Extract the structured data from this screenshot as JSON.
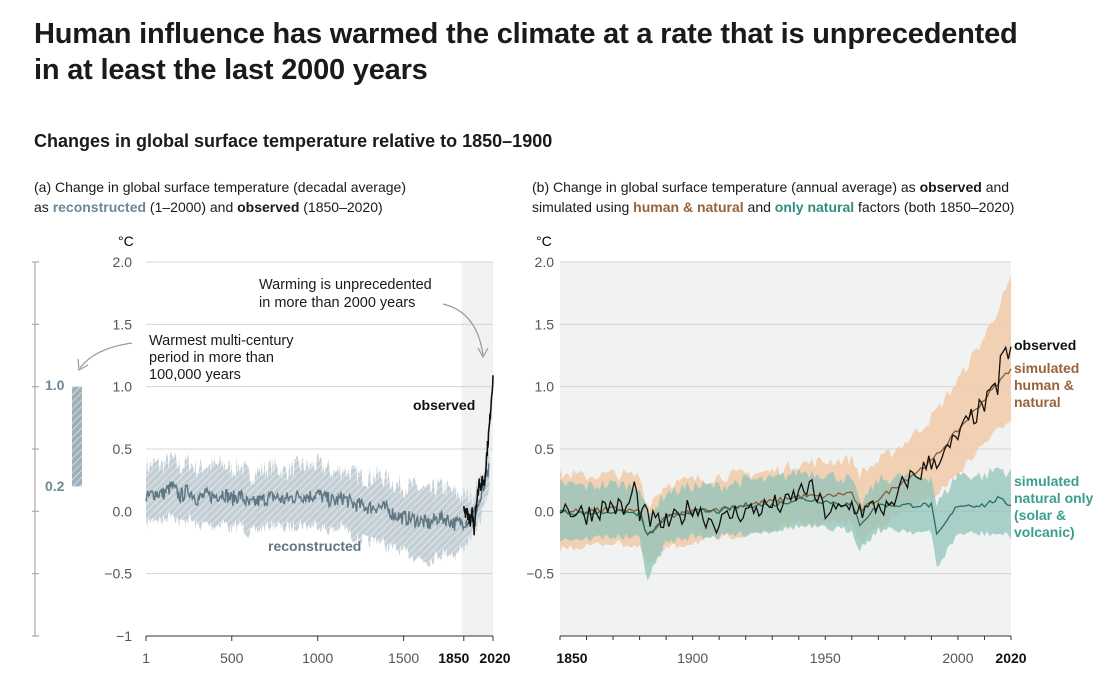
{
  "headline": {
    "line1": "Human influence has warmed the climate at a rate that is unprecedented",
    "line2": "in at least the last 2000 years"
  },
  "subtitle": "Changes in global surface temperature relative to 1850–1900",
  "panel_a": {
    "title_line1": "(a) Change in global surface temperature (decadal average)",
    "title_line2_prefix": "as ",
    "title_reconstructed": "reconstructed",
    "title_mid": " (1–2000) and ",
    "title_observed": "observed",
    "title_end": " (1850–2020)",
    "unit": "°C",
    "annotation_warming": [
      "Warming is unprecedented",
      "in more than 2000 years"
    ],
    "annotation_warmest": [
      "Warmest multi-century",
      "period in more than",
      "100,000 years"
    ],
    "label_observed": "observed",
    "label_reconstructed": "reconstructed",
    "bar_top": "1.0",
    "bar_bottom": "0.2",
    "colors": {
      "reconstructed": "#5f7683",
      "band": "#c3ced5",
      "observed": "#111111",
      "shade": "#f1f3f2",
      "bar": "#9fb0ba"
    }
  },
  "panel_b": {
    "title_line1_prefix": "(b) Change in global surface temperature (annual average) as ",
    "title_observed": "observed",
    "title_line1_end": " and",
    "title_line2_prefix": "simulated using ",
    "title_human": "human & natural",
    "title_mid": " and ",
    "title_natural": "only natural",
    "title_end": " factors (both 1850–2020)",
    "unit": "°C",
    "label_observed": "observed",
    "label_human": [
      "simulated",
      "human &",
      "natural"
    ],
    "label_natural": [
      "simulated",
      "natural only",
      "(solar &",
      "volcanic)"
    ],
    "colors": {
      "observed": "#111111",
      "human": "#8c5a35",
      "human_band": "#f2c9a8",
      "natural": "#2c6e63",
      "natural_band": "#8fc4b9",
      "shade": "#f1f3f2"
    }
  },
  "chart_data": [
    {
      "type": "line",
      "panel": "a",
      "x_ticks": [
        1,
        500,
        1000,
        1500,
        1850,
        2020
      ],
      "y_ticks": [
        -1,
        -0.5,
        0.0,
        0.5,
        1.0,
        1.5,
        2.0
      ],
      "xlim": [
        1,
        2020
      ],
      "ylim": [
        -1,
        2
      ],
      "shaded_period": [
        1850,
        2020
      ],
      "warmest_period_range": [
        0.2,
        1.0
      ],
      "series": [
        {
          "name": "reconstructed",
          "x": [
            1,
            50,
            100,
            150,
            200,
            250,
            300,
            350,
            400,
            450,
            500,
            550,
            600,
            650,
            700,
            750,
            800,
            850,
            900,
            950,
            1000,
            1050,
            1100,
            1150,
            1200,
            1250,
            1300,
            1350,
            1400,
            1450,
            1500,
            1550,
            1600,
            1650,
            1700,
            1750,
            1800,
            1850,
            1900,
            1950,
            2000
          ],
          "values": [
            0.1,
            0.15,
            0.14,
            0.2,
            0.12,
            0.17,
            0.1,
            0.13,
            0.12,
            0.15,
            0.1,
            0.13,
            0.05,
            0.08,
            0.1,
            0.12,
            0.09,
            0.11,
            0.13,
            0.12,
            0.14,
            0.1,
            0.08,
            0.11,
            0.06,
            0.05,
            0.03,
            0.04,
            0.02,
            -0.03,
            -0.05,
            -0.06,
            -0.08,
            -0.1,
            -0.05,
            -0.06,
            -0.1,
            -0.08,
            -0.05,
            0.1,
            0.35
          ],
          "lower": [
            -0.1,
            -0.05,
            -0.08,
            0.0,
            -0.1,
            -0.05,
            -0.12,
            -0.1,
            -0.12,
            -0.08,
            -0.15,
            -0.1,
            -0.18,
            -0.15,
            -0.12,
            -0.1,
            -0.14,
            -0.12,
            -0.1,
            -0.12,
            -0.1,
            -0.15,
            -0.15,
            -0.12,
            -0.2,
            -0.22,
            -0.25,
            -0.22,
            -0.28,
            -0.3,
            -0.33,
            -0.35,
            -0.38,
            -0.4,
            -0.35,
            -0.33,
            -0.35,
            -0.28,
            -0.2,
            -0.05,
            0.2
          ],
          "upper": [
            0.35,
            0.38,
            0.37,
            0.42,
            0.35,
            0.4,
            0.33,
            0.37,
            0.36,
            0.38,
            0.33,
            0.37,
            0.28,
            0.32,
            0.34,
            0.36,
            0.32,
            0.34,
            0.37,
            0.35,
            0.38,
            0.34,
            0.31,
            0.34,
            0.3,
            0.28,
            0.27,
            0.29,
            0.26,
            0.22,
            0.2,
            0.2,
            0.18,
            0.15,
            0.2,
            0.18,
            0.14,
            0.12,
            0.12,
            0.25,
            0.5
          ]
        },
        {
          "name": "observed",
          "x": [
            1850,
            1860,
            1870,
            1880,
            1890,
            1900,
            1910,
            1920,
            1930,
            1940,
            1950,
            1960,
            1970,
            1980,
            1990,
            2000,
            2010,
            2020
          ],
          "values": [
            0.0,
            -0.02,
            0.0,
            -0.05,
            -0.08,
            -0.01,
            -0.15,
            0.05,
            0.12,
            0.25,
            0.2,
            0.25,
            0.22,
            0.4,
            0.55,
            0.7,
            0.9,
            1.09
          ]
        }
      ]
    },
    {
      "type": "line",
      "panel": "b",
      "x_ticks": [
        1850,
        1900,
        1950,
        2000,
        2020
      ],
      "y_ticks": [
        -0.5,
        0.0,
        0.5,
        1.0,
        1.5,
        2.0
      ],
      "xlim": [
        1850,
        2020
      ],
      "ylim": [
        -1,
        2
      ],
      "series": [
        {
          "name": "observed",
          "x": [
            1850,
            1855,
            1860,
            1865,
            1870,
            1875,
            1878,
            1880,
            1885,
            1890,
            1895,
            1900,
            1905,
            1910,
            1915,
            1920,
            1925,
            1930,
            1935,
            1940,
            1944,
            1950,
            1955,
            1960,
            1965,
            1970,
            1975,
            1980,
            1985,
            1990,
            1995,
            2000,
            2005,
            2010,
            2015,
            2016,
            2020
          ],
          "values": [
            0.05,
            0.0,
            -0.02,
            0.02,
            0.05,
            0.0,
            0.2,
            0.0,
            -0.08,
            -0.1,
            -0.05,
            0.05,
            -0.05,
            -0.1,
            -0.02,
            0.0,
            0.02,
            0.05,
            0.05,
            0.15,
            0.2,
            0.0,
            0.0,
            0.05,
            0.0,
            0.05,
            0.0,
            0.25,
            0.3,
            0.4,
            0.45,
            0.6,
            0.75,
            0.85,
            1.0,
            1.25,
            1.25
          ]
        },
        {
          "name": "simulated human & natural",
          "x": [
            1850,
            1860,
            1870,
            1880,
            1883,
            1890,
            1900,
            1910,
            1920,
            1930,
            1940,
            1950,
            1960,
            1963,
            1970,
            1980,
            1990,
            2000,
            2010,
            2020
          ],
          "values": [
            0.0,
            0.0,
            0.02,
            0.0,
            -0.2,
            -0.05,
            0.0,
            0.02,
            0.05,
            0.08,
            0.12,
            0.12,
            0.15,
            0.0,
            0.1,
            0.25,
            0.4,
            0.65,
            0.9,
            1.15
          ],
          "lower": [
            -0.3,
            -0.28,
            -0.25,
            -0.28,
            -0.45,
            -0.3,
            -0.25,
            -0.22,
            -0.18,
            -0.15,
            -0.1,
            -0.1,
            -0.08,
            -0.25,
            -0.12,
            0.0,
            0.1,
            0.3,
            0.55,
            0.75
          ],
          "upper": [
            0.3,
            0.28,
            0.3,
            0.28,
            0.05,
            0.22,
            0.25,
            0.28,
            0.3,
            0.32,
            0.38,
            0.4,
            0.42,
            0.3,
            0.4,
            0.55,
            0.75,
            1.05,
            1.4,
            1.85
          ]
        },
        {
          "name": "simulated natural only (solar & volcanic)",
          "x": [
            1850,
            1860,
            1870,
            1880,
            1883,
            1890,
            1900,
            1910,
            1920,
            1930,
            1940,
            1950,
            1960,
            1963,
            1970,
            1980,
            1990,
            1992,
            2000,
            2010,
            2015,
            2020
          ],
          "values": [
            0.0,
            -0.02,
            0.0,
            -0.02,
            -0.2,
            -0.05,
            0.0,
            0.0,
            0.05,
            0.05,
            0.1,
            0.08,
            0.05,
            -0.1,
            0.05,
            0.05,
            0.05,
            -0.2,
            0.05,
            0.05,
            0.1,
            0.05
          ],
          "lower": [
            -0.22,
            -0.22,
            -0.2,
            -0.22,
            -0.55,
            -0.25,
            -0.2,
            -0.2,
            -0.18,
            -0.15,
            -0.12,
            -0.14,
            -0.15,
            -0.3,
            -0.15,
            -0.15,
            -0.18,
            -0.45,
            -0.18,
            -0.18,
            -0.18,
            -0.2
          ],
          "upper": [
            0.22,
            0.2,
            0.22,
            0.2,
            -0.05,
            0.15,
            0.2,
            0.2,
            0.25,
            0.25,
            0.32,
            0.3,
            0.25,
            0.05,
            0.25,
            0.28,
            0.28,
            0.05,
            0.3,
            0.28,
            0.35,
            0.3
          ]
        }
      ]
    }
  ]
}
